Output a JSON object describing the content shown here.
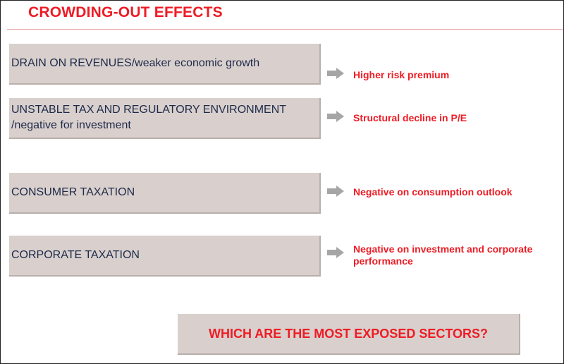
{
  "title": "CROWDING-OUT EFFECTS",
  "rows": [
    {
      "cause": "DRAIN ON REVENUES/weaker economic growth",
      "effect": "Higher risk premium",
      "arrow_icon": "right-arrow-icon"
    },
    {
      "cause_line1": "UNSTABLE TAX AND REGULATORY ENVIRONMENT",
      "cause_line2": "/negative for investment",
      "effect": "Structural decline in P/E",
      "arrow_icon": "right-arrow-icon"
    },
    {
      "cause": "CONSUMER TAXATION",
      "effect": "Negative on consumption outlook",
      "arrow_icon": "right-arrow-icon"
    },
    {
      "cause": "CORPORATE TAXATION",
      "effect_line1": "Negative on investment and corporate",
      "effect_line2": "performance",
      "arrow_icon": "right-arrow-icon"
    }
  ],
  "question": "WHICH ARE THE MOST EXPOSED SECTORS?",
  "colors": {
    "accent_red": "#ee1c25",
    "box_fill": "#d9d0cd",
    "text_navy": "#1e2a4a",
    "arrow_gray": "#a6a6a6"
  }
}
